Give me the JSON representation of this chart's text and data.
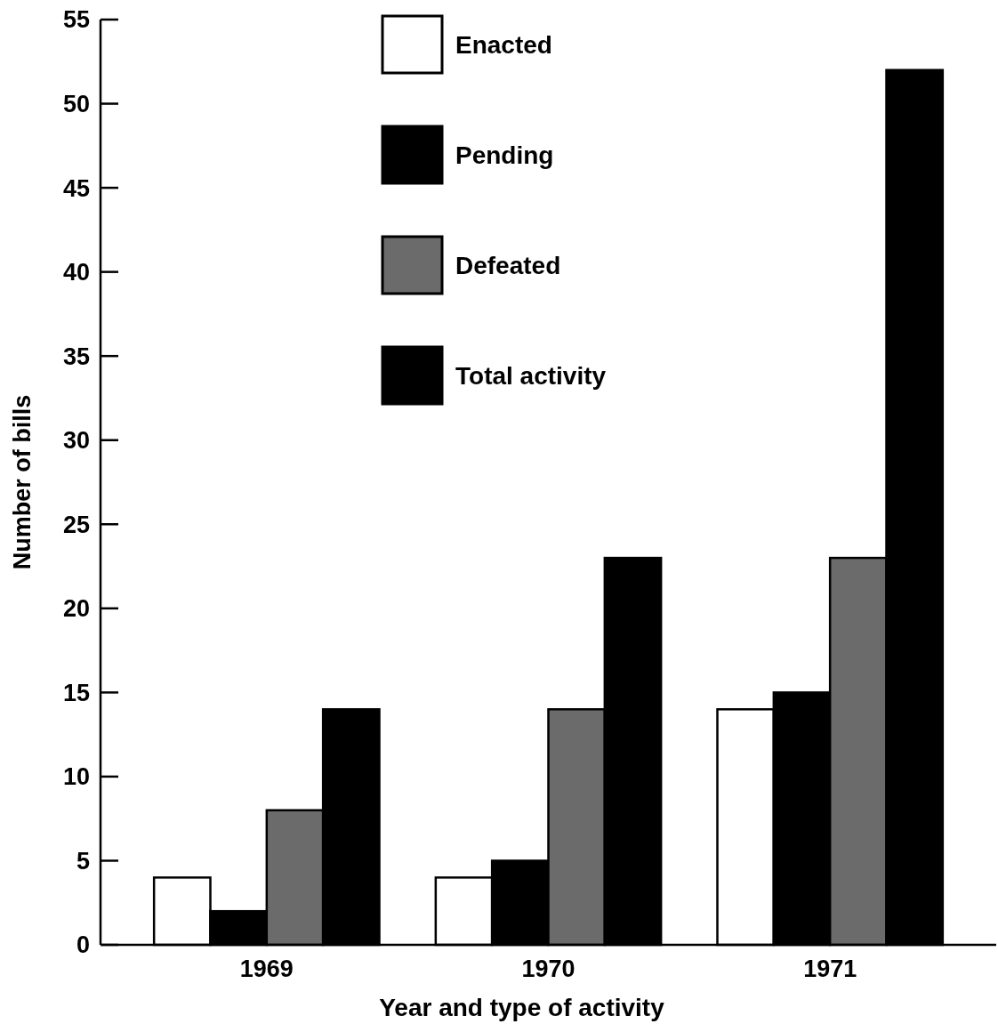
{
  "chart_data": {
    "type": "bar",
    "xlabel": "Year and type of activity",
    "ylabel": "Number of bills",
    "categories": [
      "1969",
      "1970",
      "1971"
    ],
    "series": [
      {
        "name": "Enacted",
        "color": "#ffffff",
        "values": [
          4,
          4,
          14
        ]
      },
      {
        "name": "Pending",
        "color": "#000000",
        "values": [
          2,
          5,
          15
        ]
      },
      {
        "name": "Defeated",
        "color": "#6b6b6b",
        "values": [
          8,
          14,
          23
        ]
      },
      {
        "name": "Total activity",
        "color": "#000000",
        "values": [
          14,
          23,
          52
        ]
      }
    ],
    "ylim": [
      0,
      55
    ],
    "yticks": [
      0,
      5,
      10,
      15,
      20,
      25,
      30,
      35,
      40,
      45,
      50,
      55
    ],
    "grid": false,
    "legend": "top"
  }
}
